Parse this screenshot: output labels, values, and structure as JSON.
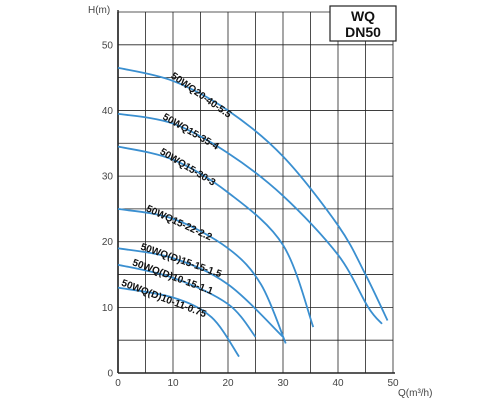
{
  "chart_data": {
    "type": "line",
    "badge": [
      "WQ",
      "DN50"
    ],
    "ylabel": "H(m)",
    "xlabel": "Q(m³/h)",
    "xlim": [
      0,
      50
    ],
    "ylim": [
      0,
      55
    ],
    "xticks": [
      0,
      10,
      20,
      30,
      40,
      50
    ],
    "yticks": [
      0,
      10,
      20,
      30,
      40,
      50
    ],
    "grid": true,
    "series": [
      {
        "name": "50WQ20-40-5.5",
        "x": [
          0,
          10,
          20,
          30,
          40,
          45,
          49
        ],
        "y": [
          46.5,
          44.5,
          40,
          33,
          22.5,
          15,
          8
        ]
      },
      {
        "name": "50WQ15-35-4",
        "x": [
          0,
          10,
          20,
          30,
          40,
          45.5,
          48
        ],
        "y": [
          39.5,
          38,
          33.5,
          27,
          18,
          10,
          7.5
        ]
      },
      {
        "name": "50WQ15-30-3",
        "x": [
          0,
          10,
          20,
          30,
          35.5
        ],
        "y": [
          34.5,
          32.5,
          27.5,
          19.5,
          7
        ]
      },
      {
        "name": "50WQ15-22-2.2",
        "x": [
          0,
          10,
          20,
          26,
          30.5
        ],
        "y": [
          25,
          23.5,
          19,
          13.5,
          4.5
        ]
      },
      {
        "name": "50WQ(D)15-15-1.5",
        "x": [
          0,
          10,
          20,
          30
        ],
        "y": [
          19,
          17.5,
          13.5,
          5.5
        ]
      },
      {
        "name": "50WQ(D)10-15-1.1",
        "x": [
          0,
          10,
          20,
          25
        ],
        "y": [
          16.5,
          14.5,
          10.5,
          5.5
        ]
      },
      {
        "name": "50WQ(D)10-11-0.75",
        "x": [
          0,
          10,
          17,
          22
        ],
        "y": [
          13,
          11.5,
          8.5,
          2.5
        ]
      }
    ],
    "colors": {
      "curve": "#3a8fd0",
      "grid": "#222222",
      "axis": "#222222"
    }
  }
}
